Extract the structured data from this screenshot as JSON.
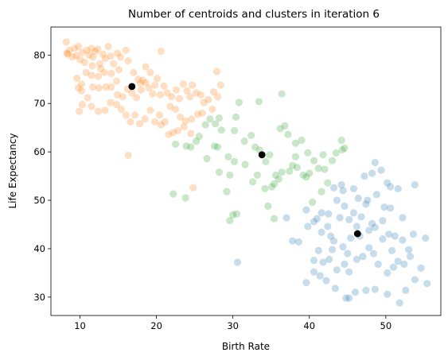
{
  "chart_data": {
    "type": "scatter",
    "title": "Number of centroids and clusters in iteration 6",
    "xlabel": "Birth Rate",
    "ylabel": "Life Expectancy",
    "xlim": [
      6.2,
      57.2
    ],
    "ylim": [
      26.2,
      85.8
    ],
    "xticks": [
      10,
      20,
      30,
      40,
      50
    ],
    "yticks": [
      30,
      40,
      50,
      60,
      70,
      80
    ],
    "grid": false,
    "colors": {
      "cluster_0": "#1f77b4",
      "cluster_1": "#ff7f0e",
      "cluster_2": "#2ca02c",
      "centroid": "#000000"
    },
    "point_alpha": 0.25,
    "series": [
      {
        "cluster": "cluster_1",
        "points": [
          [
            8.2,
            82.7
          ],
          [
            8.3,
            80.4
          ],
          [
            8.6,
            81.0
          ],
          [
            9.0,
            79.6
          ],
          [
            9.3,
            81.4
          ],
          [
            9.5,
            79.9
          ],
          [
            9.8,
            81.8
          ],
          [
            10.0,
            79.1
          ],
          [
            10.3,
            80.5
          ],
          [
            10.6,
            78.5
          ],
          [
            10.9,
            81.0
          ],
          [
            11.2,
            80.0
          ],
          [
            11.5,
            81.4
          ],
          [
            11.7,
            79.6
          ],
          [
            12.0,
            80.8
          ],
          [
            12.3,
            81.2
          ],
          [
            12.6,
            78.2
          ],
          [
            13.0,
            80.2
          ],
          [
            13.3,
            79.3
          ],
          [
            13.7,
            81.8
          ],
          [
            14.0,
            79.8
          ],
          [
            14.4,
            78.2
          ],
          [
            14.9,
            80.4
          ],
          [
            15.3,
            79.6
          ],
          [
            16.0,
            81.0
          ],
          [
            15.1,
            77.0
          ],
          [
            14.1,
            76.2
          ],
          [
            13.2,
            76.4
          ],
          [
            12.4,
            75.6
          ],
          [
            11.5,
            75.8
          ],
          [
            10.8,
            76.4
          ],
          [
            10.2,
            74.0
          ],
          [
            9.6,
            75.2
          ],
          [
            9.8,
            73.2
          ],
          [
            10.2,
            72.6
          ],
          [
            11.0,
            71.2
          ],
          [
            11.7,
            73.4
          ],
          [
            12.5,
            73.2
          ],
          [
            13.4,
            73.4
          ],
          [
            14.1,
            73.4
          ],
          [
            14.9,
            71.8
          ],
          [
            15.6,
            71.4
          ],
          [
            16.2,
            73.0
          ],
          [
            16.8,
            72.2
          ],
          [
            17.6,
            75.0
          ],
          [
            17.9,
            74.2
          ],
          [
            18.2,
            74.8
          ],
          [
            18.6,
            74.3
          ],
          [
            18.0,
            72.8
          ],
          [
            17.4,
            71.2
          ],
          [
            19.0,
            73.2
          ],
          [
            19.5,
            72.0
          ],
          [
            19.8,
            73.8
          ],
          [
            20.5,
            71.8
          ],
          [
            21.0,
            73.6
          ],
          [
            21.4,
            72.2
          ],
          [
            22.0,
            71.4
          ],
          [
            22.6,
            72.8
          ],
          [
            23.0,
            71.0
          ],
          [
            23.5,
            74.0
          ],
          [
            24.0,
            72.6
          ],
          [
            24.4,
            71.4
          ],
          [
            24.7,
            73.8
          ],
          [
            25.2,
            72.2
          ],
          [
            25.8,
            71.8
          ],
          [
            26.2,
            70.2
          ],
          [
            26.8,
            70.8
          ],
          [
            27.5,
            72.4
          ],
          [
            28.0,
            71.4
          ],
          [
            28.4,
            73.8
          ],
          [
            26.0,
            68.0
          ],
          [
            25.4,
            67.8
          ],
          [
            24.6,
            66.8
          ],
          [
            23.8,
            66.4
          ],
          [
            23.1,
            67.2
          ],
          [
            22.5,
            68.8
          ],
          [
            21.8,
            69.4
          ],
          [
            21.1,
            66.2
          ],
          [
            20.4,
            67.6
          ],
          [
            19.8,
            66.2
          ],
          [
            19.2,
            68.6
          ],
          [
            18.5,
            66.8
          ],
          [
            17.8,
            65.8
          ],
          [
            17.2,
            67.6
          ],
          [
            16.6,
            66.2
          ],
          [
            16.0,
            67.6
          ],
          [
            15.4,
            68.8
          ],
          [
            14.8,
            69.8
          ],
          [
            14.0,
            70.2
          ],
          [
            13.3,
            68.6
          ],
          [
            12.4,
            68.4
          ],
          [
            11.5,
            69.4
          ],
          [
            10.3,
            69.8
          ],
          [
            9.9,
            68.4
          ],
          [
            22.2,
            64.0
          ],
          [
            22.8,
            64.4
          ],
          [
            23.6,
            65.2
          ],
          [
            24.5,
            63.8
          ],
          [
            21.6,
            63.6
          ],
          [
            20.6,
            65.6
          ],
          [
            24.8,
            52.6
          ],
          [
            16.3,
            59.3
          ],
          [
            18.6,
            77.6
          ],
          [
            19.2,
            76.4
          ],
          [
            20.1,
            75.2
          ],
          [
            20.6,
            80.8
          ],
          [
            16.3,
            78.8
          ],
          [
            12.7,
            77.2
          ],
          [
            11.6,
            77.8
          ],
          [
            14.8,
            74.6
          ],
          [
            8.4,
            80.2
          ],
          [
            17.0,
            76.4
          ],
          [
            27.9,
            76.6
          ],
          [
            27.3,
            68.8
          ]
        ]
      },
      {
        "cluster": "cluster_2",
        "points": [
          [
            22.2,
            51.3
          ],
          [
            23.8,
            50.5
          ],
          [
            22.5,
            61.6
          ],
          [
            23.9,
            61.2
          ],
          [
            24.5,
            61.0
          ],
          [
            25.2,
            62.2
          ],
          [
            25.6,
            63.2
          ],
          [
            26.4,
            65.6
          ],
          [
            27.0,
            66.8
          ],
          [
            27.7,
            65.8
          ],
          [
            28.2,
            67.0
          ],
          [
            28.0,
            61.0
          ],
          [
            27.6,
            61.2
          ],
          [
            28.5,
            64.5
          ],
          [
            29.4,
            59.0
          ],
          [
            30.2,
            58.0
          ],
          [
            29.6,
            55.2
          ],
          [
            28.2,
            55.8
          ],
          [
            30.5,
            47.2
          ],
          [
            30.0,
            47.0
          ],
          [
            29.6,
            45.8
          ],
          [
            30.8,
            70.2
          ],
          [
            33.4,
            70.4
          ],
          [
            30.4,
            67.2
          ],
          [
            30.2,
            64.4
          ],
          [
            31.5,
            62.2
          ],
          [
            32.4,
            63.4
          ],
          [
            32.9,
            61.0
          ],
          [
            33.5,
            60.4
          ],
          [
            34.3,
            58.0
          ],
          [
            34.8,
            59.4
          ],
          [
            35.6,
            55.2
          ],
          [
            36.4,
            55.8
          ],
          [
            36.0,
            54.4
          ],
          [
            35.1,
            52.8
          ],
          [
            35.4,
            53.4
          ],
          [
            36.2,
            64.8
          ],
          [
            36.8,
            65.4
          ],
          [
            37.2,
            63.6
          ],
          [
            38.2,
            61.8
          ],
          [
            39.0,
            62.4
          ],
          [
            38.2,
            59.0
          ],
          [
            37.8,
            57.2
          ],
          [
            38.4,
            56.8
          ],
          [
            39.2,
            55.2
          ],
          [
            39.6,
            54.8
          ],
          [
            40.0,
            55.6
          ],
          [
            40.6,
            58.2
          ],
          [
            41.2,
            56.6
          ],
          [
            42.0,
            56.4
          ],
          [
            43.0,
            58.2
          ],
          [
            43.5,
            59.8
          ],
          [
            44.3,
            60.4
          ],
          [
            44.2,
            62.4
          ],
          [
            44.6,
            60.8
          ],
          [
            42.4,
            53.6
          ],
          [
            41.6,
            51.8
          ],
          [
            40.4,
            49.6
          ],
          [
            36.4,
            72.0
          ],
          [
            33.2,
            55.2
          ],
          [
            34.6,
            48.8
          ],
          [
            35.4,
            46.2
          ],
          [
            31.6,
            57.4
          ],
          [
            32.6,
            53.8
          ],
          [
            37.4,
            56.0
          ],
          [
            39.8,
            59.8
          ],
          [
            41.8,
            59.4
          ],
          [
            26.6,
            58.6
          ],
          [
            29.2,
            51.8
          ],
          [
            34.2,
            52.4
          ]
        ]
      },
      {
        "cluster": "cluster_0",
        "points": [
          [
            39.6,
            48.0
          ],
          [
            41.6,
            47.4
          ],
          [
            42.5,
            47.2
          ],
          [
            43.6,
            50.0
          ],
          [
            44.2,
            53.2
          ],
          [
            44.6,
            48.8
          ],
          [
            45.2,
            46.0
          ],
          [
            45.8,
            47.4
          ],
          [
            46.4,
            50.4
          ],
          [
            47.4,
            49.2
          ],
          [
            48.2,
            55.6
          ],
          [
            49.4,
            56.2
          ],
          [
            48.6,
            57.8
          ],
          [
            50.2,
            53.6
          ],
          [
            53.8,
            53.2
          ],
          [
            51.6,
            52.4
          ],
          [
            50.6,
            48.4
          ],
          [
            49.6,
            45.8
          ],
          [
            48.2,
            45.2
          ],
          [
            47.8,
            43.8
          ],
          [
            46.6,
            42.6
          ],
          [
            45.4,
            42.2
          ],
          [
            44.4,
            40.4
          ],
          [
            43.2,
            41.6
          ],
          [
            42.4,
            44.6
          ],
          [
            42.8,
            42.6
          ],
          [
            41.6,
            43.4
          ],
          [
            40.6,
            45.6
          ],
          [
            39.8,
            44.6
          ],
          [
            38.6,
            41.4
          ],
          [
            37.8,
            41.6
          ],
          [
            40.6,
            37.6
          ],
          [
            41.2,
            39.6
          ],
          [
            41.8,
            37.2
          ],
          [
            42.6,
            37.8
          ],
          [
            43.6,
            35.6
          ],
          [
            44.6,
            36.8
          ],
          [
            45.2,
            35.2
          ],
          [
            46.2,
            37.8
          ],
          [
            47.0,
            38.4
          ],
          [
            47.8,
            40.2
          ],
          [
            48.4,
            39.0
          ],
          [
            49.0,
            36.8
          ],
          [
            50.2,
            35.0
          ],
          [
            51.0,
            36.2
          ],
          [
            51.6,
            37.4
          ],
          [
            52.4,
            36.8
          ],
          [
            53.2,
            38.4
          ],
          [
            50.4,
            43.0
          ],
          [
            51.2,
            42.6
          ],
          [
            52.2,
            41.8
          ],
          [
            53.6,
            43.0
          ],
          [
            55.2,
            42.2
          ],
          [
            54.6,
            36.0
          ],
          [
            53.8,
            33.6
          ],
          [
            52.6,
            31.4
          ],
          [
            51.8,
            28.8
          ],
          [
            50.2,
            30.6
          ],
          [
            48.6,
            31.6
          ],
          [
            47.4,
            31.4
          ],
          [
            46.0,
            31.0
          ],
          [
            45.2,
            29.8
          ],
          [
            44.8,
            29.8
          ],
          [
            43.4,
            31.8
          ],
          [
            42.2,
            33.4
          ],
          [
            41.4,
            34.4
          ],
          [
            40.6,
            35.2
          ],
          [
            39.6,
            33.0
          ],
          [
            49.6,
            42.0
          ],
          [
            48.6,
            44.4
          ],
          [
            46.8,
            46.6
          ],
          [
            47.6,
            50.0
          ],
          [
            45.8,
            52.4
          ],
          [
            44.4,
            52.0
          ],
          [
            43.2,
            52.6
          ],
          [
            47.2,
            55.0
          ],
          [
            48.8,
            51.2
          ],
          [
            50.6,
            52.8
          ],
          [
            52.2,
            46.4
          ],
          [
            49.8,
            48.6
          ],
          [
            46.2,
            44.6
          ],
          [
            45.0,
            39.0
          ],
          [
            43.0,
            39.8
          ],
          [
            55.4,
            32.8
          ],
          [
            53.0,
            39.8
          ],
          [
            44.0,
            46.4
          ],
          [
            41.0,
            46.2
          ],
          [
            50.8,
            39.6
          ],
          [
            37.0,
            46.4
          ],
          [
            30.6,
            37.2
          ]
        ]
      }
    ],
    "centroids": [
      [
        16.8,
        73.5
      ],
      [
        33.8,
        59.4
      ],
      [
        46.3,
        43.1
      ]
    ]
  }
}
